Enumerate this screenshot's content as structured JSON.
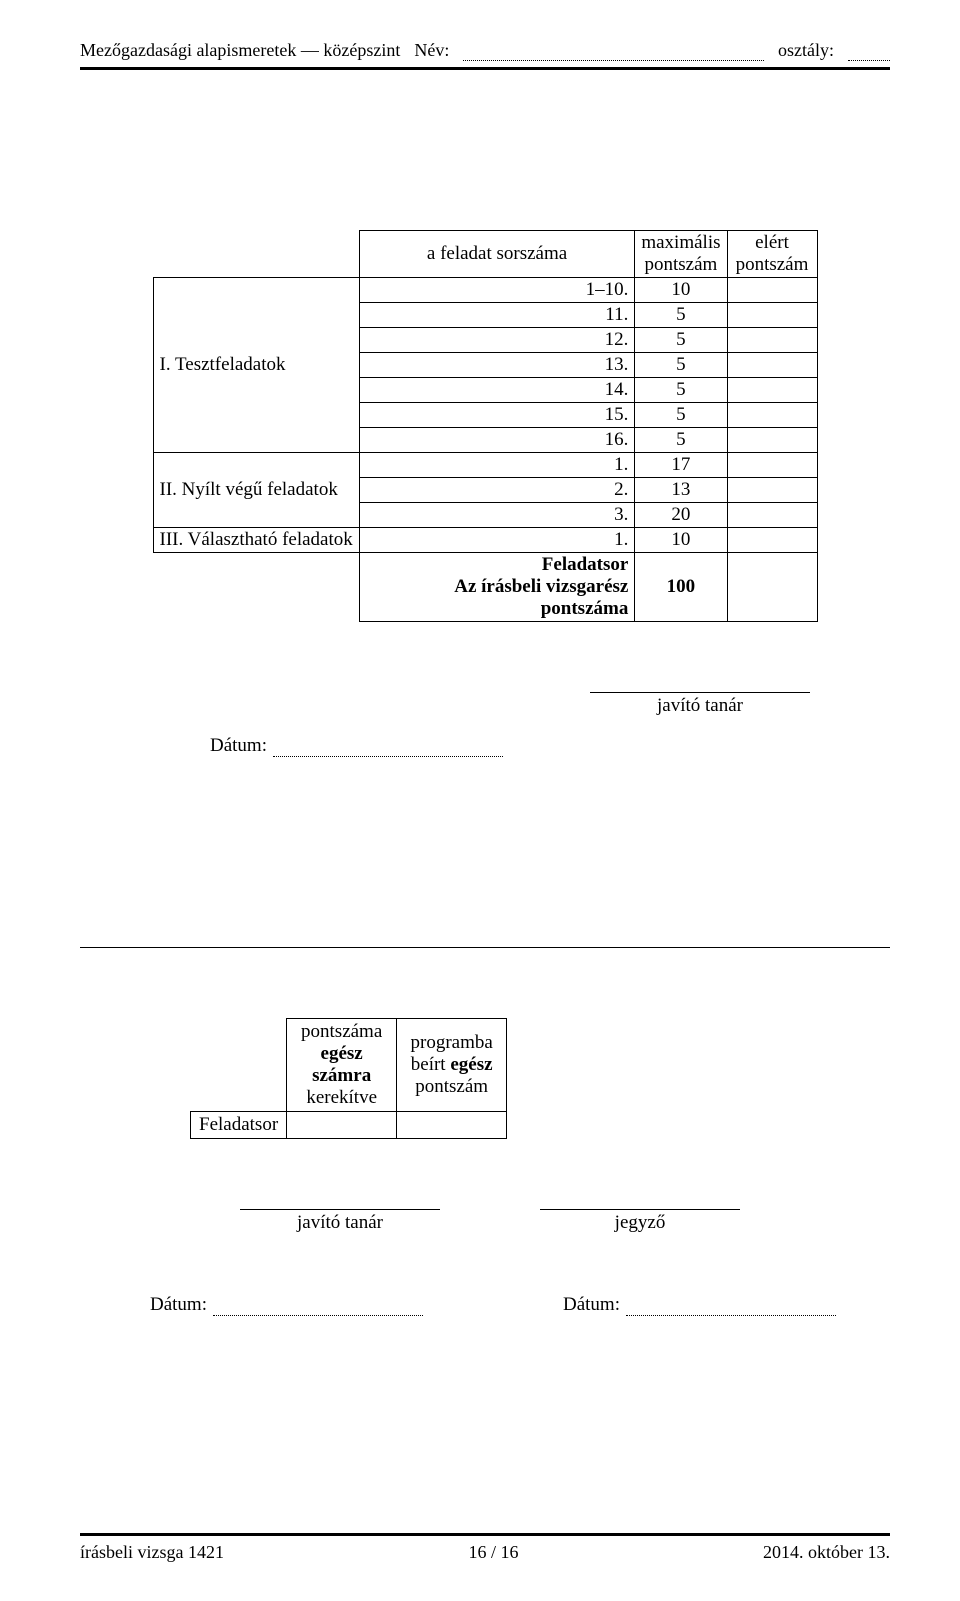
{
  "header": {
    "subject": "Mezőgazdasági alapismeretek — középszint",
    "nev_label": "Név:",
    "osztaly_label": "osztály:"
  },
  "score_table": {
    "col_task": "a feladat sorszáma",
    "col_max": "maximális pontszám",
    "col_elert": "elért pontszám",
    "sections": [
      {
        "label": "I. Tesztfeladatok",
        "rows": [
          {
            "n": "1–10.",
            "max": "10"
          },
          {
            "n": "11.",
            "max": "5"
          },
          {
            "n": "12.",
            "max": "5"
          },
          {
            "n": "13.",
            "max": "5"
          },
          {
            "n": "14.",
            "max": "5"
          },
          {
            "n": "15.",
            "max": "5"
          },
          {
            "n": "16.",
            "max": "5"
          }
        ]
      },
      {
        "label": "II. Nyílt végű feladatok",
        "rows": [
          {
            "n": "1.",
            "max": "17"
          },
          {
            "n": "2.",
            "max": "13"
          },
          {
            "n": "3.",
            "max": "20"
          }
        ]
      },
      {
        "label": "III. Választható feladatok",
        "rows": [
          {
            "n": "1.",
            "max": "10"
          }
        ]
      }
    ],
    "total_label1": "Feladatsor",
    "total_label2": "Az írásbeli vizsgarész pontszáma",
    "total_max": "100"
  },
  "sign": {
    "javito": "javító tanár",
    "jegyzo": "jegyző",
    "datum": "Dátum:"
  },
  "lower_table": {
    "col1_line1": "pontszáma",
    "col1_line2": "egész",
    "col1_line3": "számra",
    "col1_line4": "kerekítve",
    "col2_line1": "programba",
    "col2_line2": "beírt egész",
    "col2_line3": "pontszám",
    "row_label": "Feladatsor"
  },
  "footer": {
    "left": "írásbeli vizsga 1421",
    "center": "16 / 16",
    "right": "2014. október 13."
  }
}
